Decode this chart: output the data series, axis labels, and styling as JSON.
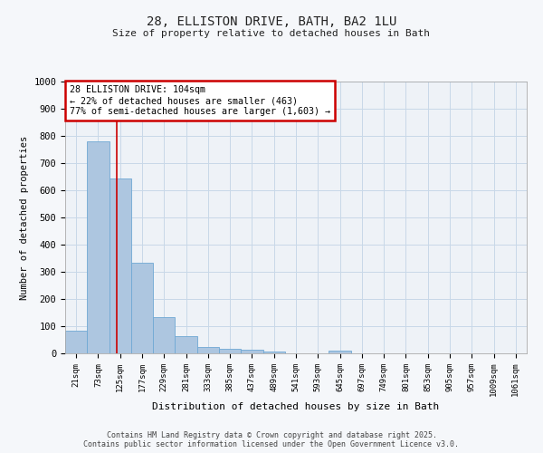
{
  "title_line1": "28, ELLISTON DRIVE, BATH, BA2 1LU",
  "title_line2": "Size of property relative to detached houses in Bath",
  "xlabel": "Distribution of detached houses by size in Bath",
  "ylabel": "Number of detached properties",
  "bar_labels": [
    "21sqm",
    "73sqm",
    "125sqm",
    "177sqm",
    "229sqm",
    "281sqm",
    "333sqm",
    "385sqm",
    "437sqm",
    "489sqm",
    "541sqm",
    "593sqm",
    "645sqm",
    "697sqm",
    "749sqm",
    "801sqm",
    "853sqm",
    "905sqm",
    "957sqm",
    "1009sqm",
    "1061sqm"
  ],
  "bar_values": [
    83,
    780,
    645,
    335,
    133,
    62,
    25,
    18,
    15,
    8,
    0,
    0,
    10,
    0,
    0,
    0,
    0,
    0,
    0,
    0,
    0
  ],
  "bar_color": "#adc6e0",
  "bar_edge_color": "#6fa8d4",
  "red_line_x": 1.85,
  "annotation_text": "28 ELLISTON DRIVE: 104sqm\n← 22% of detached houses are smaller (463)\n77% of semi-detached houses are larger (1,603) →",
  "annotation_box_color": "#ffffff",
  "annotation_box_edge_color": "#cc0000",
  "ylim": [
    0,
    1000
  ],
  "yticks": [
    0,
    100,
    200,
    300,
    400,
    500,
    600,
    700,
    800,
    900,
    1000
  ],
  "grid_color": "#c8d8e8",
  "background_color": "#eef2f7",
  "fig_background_color": "#f5f7fa",
  "footer_line1": "Contains HM Land Registry data © Crown copyright and database right 2025.",
  "footer_line2": "Contains public sector information licensed under the Open Government Licence v3.0."
}
